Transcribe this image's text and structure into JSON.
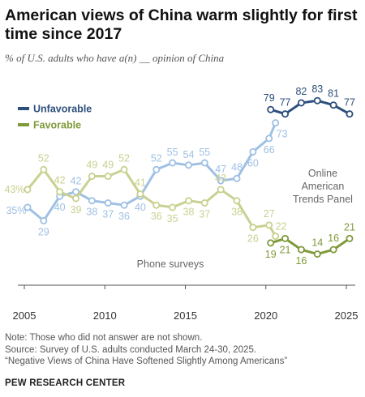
{
  "title": "American views of China warm slightly for first time since 2017",
  "subtitle": "% of U.S. adults who have a(n) __ opinion of China",
  "notes": [
    "Note: Those who did not answer are not shown.",
    "Source: Survey of U.S. adults conducted March 24-30, 2025.",
    "“Negative Views of China Have Softened Slightly Among Americans”"
  ],
  "organization": "PEW RESEARCH CENTER",
  "colors": {
    "unfavorable_phone": "#9fc0e4",
    "unfavorable_online": "#2d4f7c",
    "favorable_phone": "#c9d190",
    "favorable_online": "#7f9a3a",
    "label": "#666666",
    "axis": "#555555"
  },
  "chart_data": {
    "type": "line",
    "xlim": [
      2005,
      2025
    ],
    "ylim": [
      0,
      90
    ],
    "x_ticks": [
      2005,
      2010,
      2015,
      2020,
      2025
    ],
    "legend": {
      "position": "top-left",
      "items": [
        {
          "label": "Unfavorable",
          "color": "#2d4f7c"
        },
        {
          "label": "Favorable",
          "color": "#7f9a3a"
        }
      ]
    },
    "annotations": {
      "phone": "Phone surveys",
      "online": [
        "Online",
        "American",
        "Trends Panel"
      ]
    },
    "series": [
      {
        "name": "Unfavorable",
        "mode": "Phone surveys",
        "color": "#9fc0e4",
        "points": [
          {
            "x": 2005.2,
            "y": 35,
            "label": "35%"
          },
          {
            "x": 2006.2,
            "y": 29,
            "label": "29"
          },
          {
            "x": 2007.2,
            "y": 40,
            "label": "40"
          },
          {
            "x": 2008.2,
            "y": 42,
            "label": "42"
          },
          {
            "x": 2009.2,
            "y": 38,
            "label": "38"
          },
          {
            "x": 2010.2,
            "y": 37,
            "label": "37"
          },
          {
            "x": 2011.2,
            "y": 36,
            "label": "36"
          },
          {
            "x": 2012.2,
            "y": 40,
            "label": "40"
          },
          {
            "x": 2013.2,
            "y": 52,
            "label": "52"
          },
          {
            "x": 2014.2,
            "y": 55,
            "label": "55"
          },
          {
            "x": 2015.2,
            "y": 54,
            "label": "54"
          },
          {
            "x": 2016.2,
            "y": 55,
            "label": "55"
          },
          {
            "x": 2017.2,
            "y": 47,
            "label": "47"
          },
          {
            "x": 2018.2,
            "y": 48,
            "label": "48"
          },
          {
            "x": 2019.2,
            "y": 60,
            "label": "60"
          },
          {
            "x": 2020.2,
            "y": 66,
            "label": "66"
          },
          {
            "x": 2020.6,
            "y": 73,
            "label": "73"
          }
        ]
      },
      {
        "name": "Favorable",
        "mode": "Phone surveys",
        "color": "#c9d190",
        "points": [
          {
            "x": 2005.2,
            "y": 43,
            "label": "43%"
          },
          {
            "x": 2006.2,
            "y": 52,
            "label": "52"
          },
          {
            "x": 2007.2,
            "y": 42,
            "label": "42"
          },
          {
            "x": 2008.2,
            "y": 39,
            "label": "39"
          },
          {
            "x": 2009.2,
            "y": 49,
            "label": "49"
          },
          {
            "x": 2010.2,
            "y": 49,
            "label": "49"
          },
          {
            "x": 2011.2,
            "y": 52,
            "label": "52"
          },
          {
            "x": 2012.2,
            "y": 41,
            "label": "41"
          },
          {
            "x": 2013.2,
            "y": 36,
            "label": "36"
          },
          {
            "x": 2014.2,
            "y": 35,
            "label": "35"
          },
          {
            "x": 2015.2,
            "y": 38,
            "label": "38"
          },
          {
            "x": 2016.2,
            "y": 37,
            "label": "37"
          },
          {
            "x": 2017.2,
            "y": 43,
            "label": "43"
          },
          {
            "x": 2018.2,
            "y": 38,
            "label": "38"
          },
          {
            "x": 2019.2,
            "y": 26,
            "label": "26"
          },
          {
            "x": 2020.2,
            "y": 27,
            "label": "27"
          },
          {
            "x": 2020.6,
            "y": 22,
            "label": "22"
          }
        ]
      },
      {
        "name": "Unfavorable",
        "mode": "Online American Trends Panel",
        "color": "#2d4f7c",
        "points": [
          {
            "x": 2020.3,
            "y": 79,
            "label": "79"
          },
          {
            "x": 2021.2,
            "y": 77,
            "label": "77"
          },
          {
            "x": 2022.2,
            "y": 82,
            "label": "82"
          },
          {
            "x": 2023.2,
            "y": 83,
            "label": "83"
          },
          {
            "x": 2024.2,
            "y": 81,
            "label": "81"
          },
          {
            "x": 2025.2,
            "y": 77,
            "label": "77"
          }
        ]
      },
      {
        "name": "Favorable",
        "mode": "Online American Trends Panel",
        "color": "#7f9a3a",
        "points": [
          {
            "x": 2020.3,
            "y": 19,
            "label": "19"
          },
          {
            "x": 2021.2,
            "y": 21,
            "label": "21"
          },
          {
            "x": 2022.2,
            "y": 16,
            "label": "16"
          },
          {
            "x": 2023.2,
            "y": 14,
            "label": "14"
          },
          {
            "x": 2024.2,
            "y": 16,
            "label": "16"
          },
          {
            "x": 2025.2,
            "y": 21,
            "label": "21"
          }
        ]
      }
    ]
  }
}
